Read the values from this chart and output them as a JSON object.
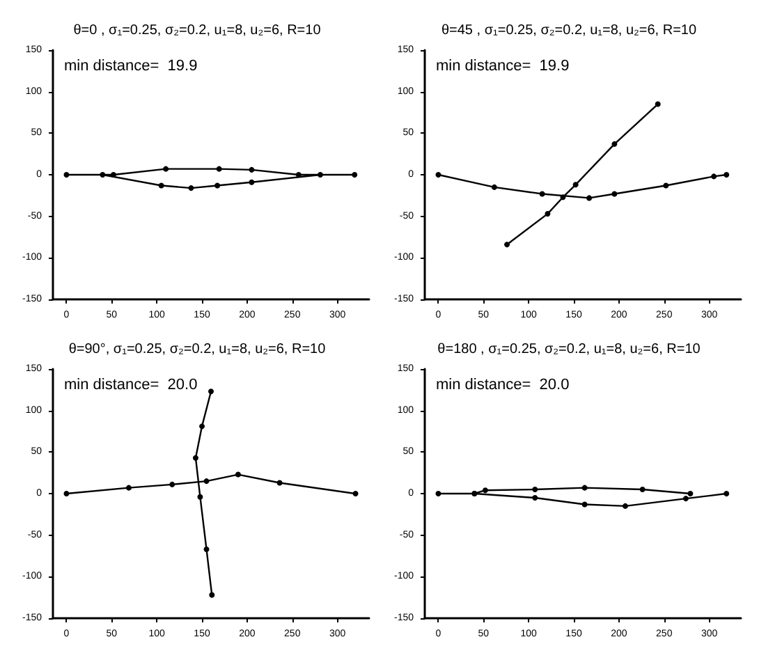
{
  "chart_data": [
    {
      "type": "line",
      "title": "θ=0 , σ₁=0.25, σ₂=0.2, u₁=8, u₂=6, R=10",
      "annotations": [
        "min distance=  19.9"
      ],
      "xlim": [
        -15,
        335
      ],
      "ylim": [
        -150,
        150
      ],
      "xticks": [
        0,
        50,
        100,
        150,
        200,
        250,
        300
      ],
      "yticks": [
        -150,
        -100,
        -50,
        0,
        50,
        100,
        150
      ],
      "grid": false,
      "marker": "circle",
      "line_style": "solid",
      "series": [
        {
          "color": "#000000",
          "x": [
            0,
            52,
            110,
            169,
            205,
            257,
            319
          ],
          "values": [
            0,
            0,
            7,
            7,
            6,
            0,
            0
          ]
        },
        {
          "color": "#000000",
          "x": [
            40,
            105,
            138,
            167,
            205,
            281
          ],
          "values": [
            0,
            -13,
            -16,
            -13,
            -9,
            0
          ]
        }
      ]
    },
    {
      "type": "line",
      "title": "θ=45 , σ₁=0.25, σ₂=0.2, u₁=8, u₂=6, R=10",
      "annotations": [
        "min distance=  19.9"
      ],
      "xlim": [
        -15,
        335
      ],
      "ylim": [
        -150,
        150
      ],
      "xticks": [
        0,
        50,
        100,
        150,
        200,
        250,
        300
      ],
      "yticks": [
        -150,
        -100,
        -50,
        0,
        50,
        100,
        150
      ],
      "grid": false,
      "marker": "circle",
      "line_style": "solid",
      "series": [
        {
          "color": "#000000",
          "x": [
            0,
            62,
            115,
            167,
            195,
            252,
            305,
            319
          ],
          "values": [
            0,
            -15,
            -23,
            -28,
            -23,
            -13,
            -2,
            0
          ]
        },
        {
          "color": "#000000",
          "x": [
            76,
            121,
            138,
            152,
            195,
            243
          ],
          "values": [
            -84,
            -47,
            -27,
            -12,
            37,
            85
          ]
        }
      ]
    },
    {
      "type": "line",
      "title": "θ=90°, σ₁=0.25, σ₂=0.2, u₁=8, u₂=6, R=10",
      "annotations": [
        "min distance=  20.0"
      ],
      "xlim": [
        -15,
        335
      ],
      "ylim": [
        -150,
        150
      ],
      "xticks": [
        0,
        50,
        100,
        150,
        200,
        250,
        300
      ],
      "yticks": [
        -150,
        -100,
        -50,
        0,
        50,
        100,
        150
      ],
      "grid": false,
      "marker": "circle",
      "line_style": "solid",
      "series": [
        {
          "color": "#000000",
          "x": [
            0,
            69,
            117,
            155,
            190,
            236,
            320
          ],
          "values": [
            0,
            7,
            11,
            15,
            23,
            13,
            0
          ]
        },
        {
          "color": "#000000",
          "x": [
            161,
            155,
            148,
            143,
            150,
            160
          ],
          "values": [
            -122,
            -67,
            -4,
            43,
            81,
            123
          ]
        }
      ]
    },
    {
      "type": "line",
      "title": "θ=180 , σ₁=0.25, σ₂=0.2, u₁=8, u₂=6, R=10",
      "annotations": [
        "min distance=  20.0"
      ],
      "xlim": [
        -15,
        335
      ],
      "ylim": [
        -150,
        150
      ],
      "xticks": [
        0,
        50,
        100,
        150,
        200,
        250,
        300
      ],
      "yticks": [
        -150,
        -100,
        -50,
        0,
        50,
        100,
        150
      ],
      "grid": false,
      "marker": "circle",
      "line_style": "solid",
      "series": [
        {
          "color": "#000000",
          "x": [
            0,
            40,
            107,
            162,
            207,
            274,
            319
          ],
          "values": [
            0,
            0,
            -5,
            -13,
            -15,
            -6,
            0
          ]
        },
        {
          "color": "#000000",
          "x": [
            40,
            52,
            107,
            162,
            226,
            279
          ],
          "values": [
            0,
            4,
            5,
            7,
            5,
            0
          ]
        }
      ]
    }
  ]
}
